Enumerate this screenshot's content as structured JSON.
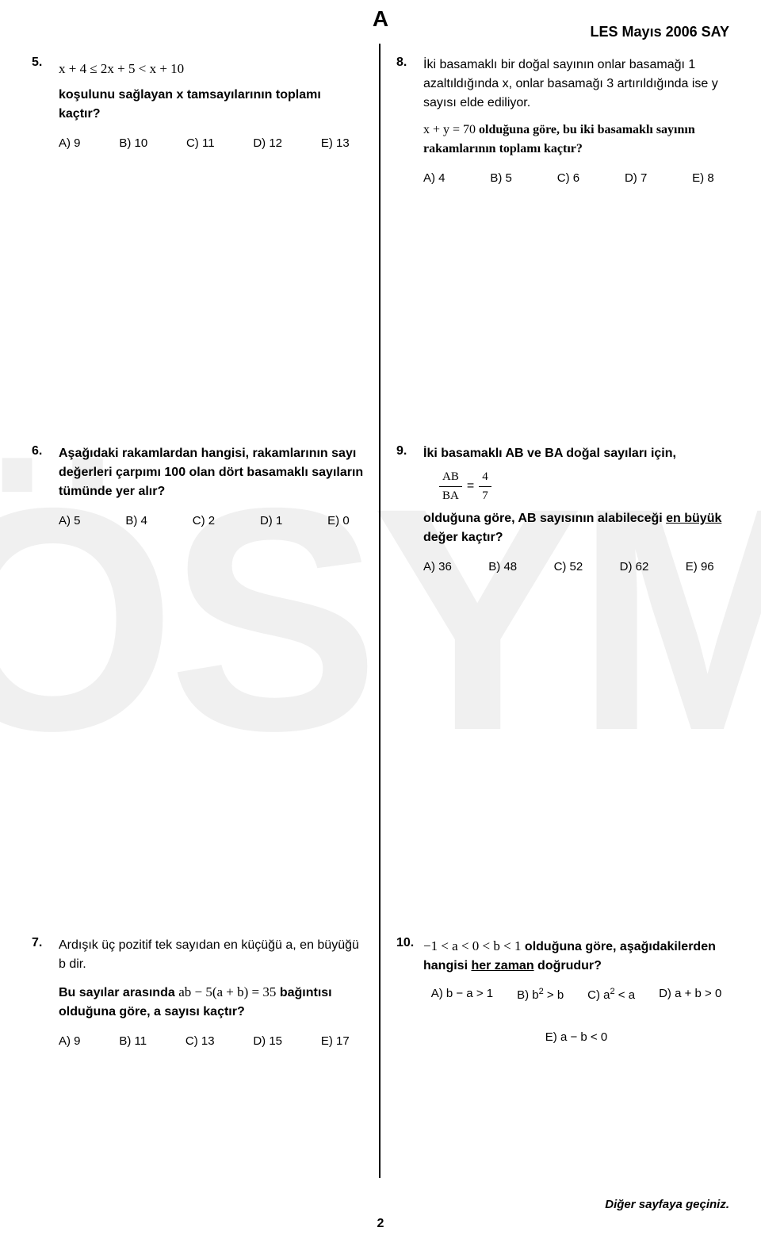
{
  "header": {
    "letter": "A",
    "exam": "LES Mayıs 2006 SAY"
  },
  "watermark": "ÖSYM",
  "q5": {
    "num": "5.",
    "formula": "x + 4 ≤ 2x + 5 < x + 10",
    "text1": "koşulunu sağlayan  x  tamsayılarının toplamı kaçtır?",
    "choices": {
      "a": "A) 9",
      "b": "B) 10",
      "c": "C) 11",
      "d": "D) 12",
      "e": "E) 13"
    }
  },
  "q6": {
    "num": "6.",
    "text1": "Aşağıdaki rakamlardan hangisi, rakamlarının sayı değerleri çarpımı 100 olan dört basamaklı sayıların tümünde yer alır?",
    "choices": {
      "a": "A) 5",
      "b": "B) 4",
      "c": "C) 2",
      "d": "D) 1",
      "e": "E) 0"
    }
  },
  "q7": {
    "num": "7.",
    "text1": "Ardışık üç pozitif tek sayıdan en küçüğü a, en büyüğü b dir.",
    "text2a": "Bu sayılar arasında ",
    "formula": "ab − 5(a + b) = 35",
    "text2b": " bağıntısı olduğuna göre,  a  sayısı kaçtır?",
    "choices": {
      "a": "A) 9",
      "b": "B) 11",
      "c": "C) 13",
      "d": "D) 15",
      "e": "E) 17"
    }
  },
  "q8": {
    "num": "8.",
    "text1": "İki basamaklı bir doğal sayının onlar basamağı 1 azaltıldığında x, onlar basamağı 3 artırıldığında ise y sayısı elde ediliyor.",
    "text2a": "x + y = 70  olduğuna göre, bu iki basamaklı sayının rakamlarının toplamı kaçtır?",
    "choices": {
      "a": "A) 4",
      "b": "B) 5",
      "c": "C) 6",
      "d": "D) 7",
      "e": "E) 8"
    }
  },
  "q9": {
    "num": "9.",
    "text1": "İki basamaklı AB ve BA doğal sayıları için,",
    "frac": {
      "numL": "AB",
      "denL": "BA",
      "eq": "=",
      "numR": "4",
      "denR": "7"
    },
    "text2a": "olduğuna göre, AB sayısının alabileceği ",
    "text2u": "en büyük",
    "text2b": " değer kaçtır?",
    "choices": {
      "a": "A) 36",
      "b": "B) 48",
      "c": "C) 52",
      "d": "D) 62",
      "e": "E) 96"
    }
  },
  "q10": {
    "num": "10.",
    "formula": "−1 < a < 0 < b < 1",
    "text1a": " olduğuna göre, aşağıdakilerden hangisi ",
    "text1u": "her zaman",
    "text1b": " doğrudur?",
    "choices": {
      "a": "A) b − a > 1",
      "b_pre": "B) b",
      "b_post": " > b",
      "c_pre": "C) a",
      "c_post": " < a",
      "d": "D) a + b > 0",
      "e": "E) a − b < 0",
      "exp": "2"
    }
  },
  "footer": {
    "next": "Diğer sayfaya geçiniz.",
    "page": "2"
  }
}
